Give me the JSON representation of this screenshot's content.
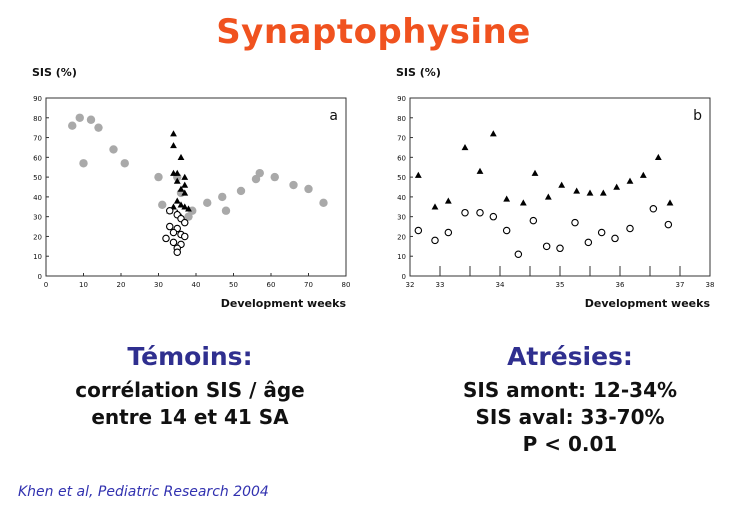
{
  "title": "Synaptophysine",
  "chart_data": [
    {
      "type": "scatter",
      "panel_label": "a",
      "ylabel": "SIS (%)",
      "xlabel": "Development weeks",
      "xlim": [
        0,
        80
      ],
      "ylim": [
        0,
        90
      ],
      "xticks": [
        "0",
        "10",
        "20",
        "30",
        "40",
        "50",
        "60",
        "70",
        "80"
      ],
      "yticks": [
        "0",
        "10",
        "20",
        "30",
        "40",
        "50",
        "60",
        "70",
        "80",
        "90"
      ],
      "series": [
        {
          "marker": "filled-circle-grey",
          "color": "#a9a9a9",
          "points": [
            [
              7,
              76
            ],
            [
              9,
              80
            ],
            [
              10,
              57
            ],
            [
              12,
              79
            ],
            [
              14,
              75
            ],
            [
              18,
              64
            ],
            [
              21,
              57
            ],
            [
              30,
              50
            ],
            [
              31,
              36
            ],
            [
              35,
              50
            ],
            [
              36,
              42
            ],
            [
              38,
              30
            ],
            [
              39,
              33
            ],
            [
              43,
              37
            ],
            [
              47,
              40
            ],
            [
              48,
              33
            ],
            [
              52,
              43
            ],
            [
              56,
              49
            ],
            [
              57,
              52
            ],
            [
              61,
              50
            ],
            [
              66,
              46
            ],
            [
              70,
              44
            ],
            [
              74,
              37
            ]
          ]
        },
        {
          "marker": "filled-triangle",
          "color": "#000000",
          "points": [
            [
              34,
              72
            ],
            [
              34,
              66
            ],
            [
              36,
              60
            ],
            [
              34,
              52
            ],
            [
              35,
              52
            ],
            [
              35,
              48
            ],
            [
              37,
              50
            ],
            [
              37,
              46
            ],
            [
              36,
              44
            ],
            [
              37,
              42
            ],
            [
              35,
              38
            ],
            [
              36,
              36
            ],
            [
              34,
              35
            ],
            [
              33,
              33
            ],
            [
              37,
              35
            ],
            [
              38,
              34
            ],
            [
              35,
              32
            ],
            [
              36,
              30
            ]
          ]
        },
        {
          "marker": "open-circle",
          "color": "#000000",
          "points": [
            [
              33,
              33
            ],
            [
              35,
              31
            ],
            [
              36,
              29
            ],
            [
              37,
              27
            ],
            [
              33,
              25
            ],
            [
              35,
              24
            ],
            [
              34,
              22
            ],
            [
              36,
              21
            ],
            [
              37,
              20
            ],
            [
              32,
              19
            ],
            [
              34,
              17
            ],
            [
              36,
              16
            ],
            [
              35,
              14
            ],
            [
              35,
              12
            ]
          ]
        }
      ]
    },
    {
      "type": "scatter",
      "panel_label": "b",
      "ylabel": "SIS (%)",
      "xlabel": "Development weeks",
      "xlim": [
        0,
        18
      ],
      "ylim": [
        0,
        90
      ],
      "xticks": [
        "32",
        "33",
        "",
        "34",
        "",
        "35",
        "",
        "36",
        "",
        "37",
        "38"
      ],
      "yticks": [
        "0",
        "10",
        "20",
        "30",
        "40",
        "50",
        "60",
        "70",
        "80",
        "90"
      ],
      "series": [
        {
          "marker": "filled-triangle",
          "color": "#000000",
          "points": [
            [
              0.5,
              51
            ],
            [
              1.5,
              35
            ],
            [
              2.3,
              38
            ],
            [
              3.3,
              65
            ],
            [
              4.2,
              53
            ],
            [
              5,
              72
            ],
            [
              5.8,
              39
            ],
            [
              6.8,
              37
            ],
            [
              7.5,
              52
            ],
            [
              8.3,
              40
            ],
            [
              9.1,
              46
            ],
            [
              10,
              43
            ],
            [
              10.8,
              42
            ],
            [
              11.6,
              42
            ],
            [
              12.4,
              45
            ],
            [
              13.2,
              48
            ],
            [
              14,
              51
            ],
            [
              14.9,
              60
            ],
            [
              15.6,
              37
            ]
          ]
        },
        {
          "marker": "open-circle",
          "color": "#000000",
          "points": [
            [
              0.5,
              23
            ],
            [
              1.5,
              18
            ],
            [
              2.3,
              22
            ],
            [
              3.3,
              32
            ],
            [
              4.2,
              32
            ],
            [
              5,
              30
            ],
            [
              5.8,
              23
            ],
            [
              6.5,
              11
            ],
            [
              7.4,
              28
            ],
            [
              8.2,
              15
            ],
            [
              9,
              14
            ],
            [
              9.9,
              27
            ],
            [
              10.7,
              17
            ],
            [
              11.5,
              22
            ],
            [
              12.3,
              19
            ],
            [
              13.2,
              24
            ],
            [
              14.6,
              34
            ],
            [
              15.5,
              26
            ]
          ]
        }
      ]
    }
  ],
  "caption_a": {
    "title": "Témoins:",
    "line1": "corrélation SIS / âge",
    "line2": "entre 14 et 41 SA"
  },
  "caption_b": {
    "title": "Atrésies:",
    "line1": "SIS amont: 12-34%",
    "line2": "SIS aval: 33-70%",
    "line3": "P < 0.01"
  },
  "reference": "Khen et al, Pediatric Research 2004"
}
